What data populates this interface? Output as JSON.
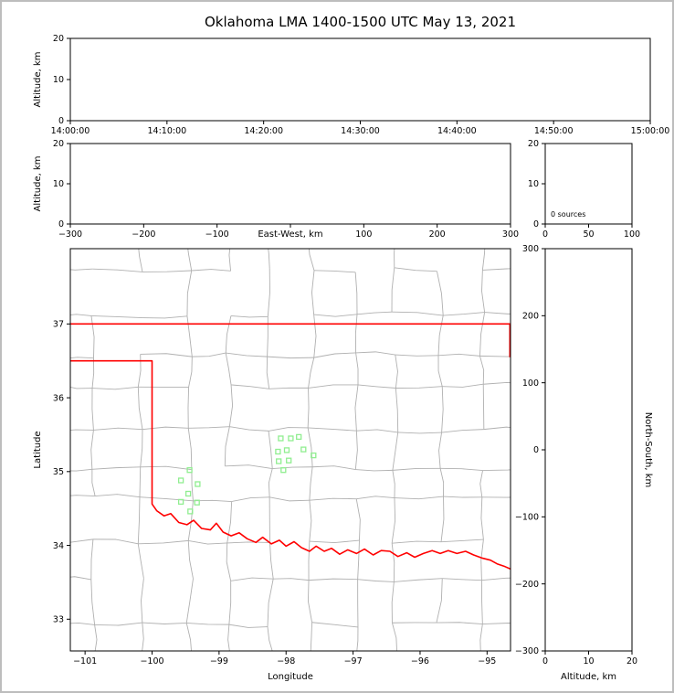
{
  "figure": {
    "title": "Oklahoma LMA 1400-1500 UTC May 13, 2021",
    "background": "#ffffff",
    "border_color": "#bdbdbd"
  },
  "colors": {
    "axis": "#000000",
    "county_lines": "#b0b0b0",
    "state_border": "#ff0000",
    "station_marker": "#90ee90"
  },
  "chart_data": [
    {
      "id": "time_height",
      "type": "scatter",
      "description": "VHF source altitude vs time, empty (no sources in period)",
      "xlabel": "",
      "ylabel": "Altitude, km",
      "xlim": [
        0,
        60
      ],
      "ylim": [
        0,
        20
      ],
      "x_ticks": [
        {
          "v": 0,
          "label": "14:00:00"
        },
        {
          "v": 10,
          "label": "14:10:00"
        },
        {
          "v": 20,
          "label": "14:20:00"
        },
        {
          "v": 30,
          "label": "14:30:00"
        },
        {
          "v": 40,
          "label": "14:40:00"
        },
        {
          "v": 50,
          "label": "14:50:00"
        },
        {
          "v": 60,
          "label": "15:00:00"
        }
      ],
      "y_ticks": [
        {
          "v": 0,
          "label": "0"
        },
        {
          "v": 10,
          "label": "10"
        },
        {
          "v": 20,
          "label": "20"
        }
      ],
      "points": []
    },
    {
      "id": "ew_height",
      "type": "scatter",
      "description": "VHF source altitude vs east-west distance, empty",
      "xlabel": "East-West, km",
      "ylabel": "Altitude, km",
      "xlim": [
        -300,
        300
      ],
      "ylim": [
        0,
        20
      ],
      "x_ticks": [
        {
          "v": -300,
          "label": "−300"
        },
        {
          "v": -200,
          "label": "−200"
        },
        {
          "v": -100,
          "label": "−100"
        },
        {
          "v": 0,
          "label": ""
        },
        {
          "v": 100,
          "label": "100"
        },
        {
          "v": 200,
          "label": "200"
        },
        {
          "v": 300,
          "label": "300"
        }
      ],
      "y_ticks": [
        {
          "v": 0,
          "label": "0"
        },
        {
          "v": 10,
          "label": "10"
        },
        {
          "v": 20,
          "label": "20"
        }
      ],
      "points": []
    },
    {
      "id": "src_hist",
      "type": "histogram",
      "description": "Source count per altitude histogram, empty",
      "xlabel": "",
      "ylabel": "",
      "xlim": [
        0,
        100
      ],
      "ylim": [
        0,
        20
      ],
      "x_ticks": [
        {
          "v": 0,
          "label": "0"
        },
        {
          "v": 50,
          "label": "50"
        },
        {
          "v": 100,
          "label": "100"
        }
      ],
      "y_ticks": [
        {
          "v": 0,
          "label": "0"
        },
        {
          "v": 10,
          "label": "10"
        },
        {
          "v": 20,
          "label": "20"
        }
      ],
      "annotation": "0 sources",
      "values": []
    },
    {
      "id": "map",
      "type": "map",
      "description": "Plan view of Oklahoma with county lines, red state/Red River border, and green LMA station squares",
      "xlabel": "Longitude",
      "ylabel": "Latitude",
      "xlim": [
        -101.22,
        -94.65
      ],
      "ylim": [
        32.57,
        38.02
      ],
      "x_ticks": [
        {
          "v": -101,
          "label": "−101"
        },
        {
          "v": -100,
          "label": "−100"
        },
        {
          "v": -99,
          "label": "−99"
        },
        {
          "v": -98,
          "label": "−98"
        },
        {
          "v": -97,
          "label": "−97"
        },
        {
          "v": -96,
          "label": "−96"
        },
        {
          "v": -95,
          "label": "−95"
        }
      ],
      "y_ticks": [
        {
          "v": 33,
          "label": "33"
        },
        {
          "v": 34,
          "label": "34"
        },
        {
          "v": 35,
          "label": "35"
        },
        {
          "v": 36,
          "label": "36"
        },
        {
          "v": 37,
          "label": "37"
        }
      ],
      "state_border": [
        [
          [
            -101.22,
            37.0
          ],
          [
            -94.66,
            37.0
          ],
          [
            -94.66,
            36.55
          ]
        ],
        [
          [
            -101.22,
            36.5
          ],
          [
            -100.0,
            36.5
          ],
          [
            -100.0,
            34.56
          ],
          [
            -99.93,
            34.47
          ],
          [
            -99.82,
            34.4
          ],
          [
            -99.72,
            34.43
          ],
          [
            -99.6,
            34.31
          ],
          [
            -99.48,
            34.28
          ],
          [
            -99.38,
            34.34
          ],
          [
            -99.26,
            34.23
          ],
          [
            -99.13,
            34.21
          ],
          [
            -99.04,
            34.3
          ],
          [
            -98.94,
            34.18
          ],
          [
            -98.82,
            34.13
          ],
          [
            -98.7,
            34.17
          ],
          [
            -98.58,
            34.09
          ],
          [
            -98.45,
            34.04
          ],
          [
            -98.35,
            34.11
          ],
          [
            -98.22,
            34.02
          ],
          [
            -98.1,
            34.07
          ],
          [
            -98.0,
            33.99
          ],
          [
            -97.88,
            34.05
          ],
          [
            -97.77,
            33.97
          ],
          [
            -97.65,
            33.92
          ],
          [
            -97.55,
            33.99
          ],
          [
            -97.43,
            33.92
          ],
          [
            -97.32,
            33.96
          ],
          [
            -97.2,
            33.88
          ],
          [
            -97.08,
            33.94
          ],
          [
            -96.95,
            33.89
          ],
          [
            -96.83,
            33.95
          ],
          [
            -96.7,
            33.87
          ],
          [
            -96.58,
            33.93
          ],
          [
            -96.45,
            33.92
          ],
          [
            -96.33,
            33.85
          ],
          [
            -96.2,
            33.9
          ],
          [
            -96.08,
            33.84
          ],
          [
            -95.95,
            33.89
          ],
          [
            -95.82,
            33.93
          ],
          [
            -95.7,
            33.89
          ],
          [
            -95.58,
            33.93
          ],
          [
            -95.45,
            33.89
          ],
          [
            -95.32,
            33.92
          ],
          [
            -95.2,
            33.87
          ],
          [
            -95.08,
            33.83
          ],
          [
            -94.95,
            33.8
          ],
          [
            -94.85,
            33.75
          ],
          [
            -94.75,
            33.72
          ],
          [
            -94.65,
            33.68
          ]
        ]
      ],
      "stations": [
        [
          -99.44,
          35.02
        ],
        [
          -99.57,
          34.88
        ],
        [
          -99.32,
          34.83
        ],
        [
          -99.46,
          34.7
        ],
        [
          -99.57,
          34.59
        ],
        [
          -99.33,
          34.58
        ],
        [
          -99.43,
          34.46
        ],
        [
          -98.08,
          35.45
        ],
        [
          -97.93,
          35.45
        ],
        [
          -97.81,
          35.47
        ],
        [
          -98.12,
          35.27
        ],
        [
          -97.99,
          35.29
        ],
        [
          -97.74,
          35.3
        ],
        [
          -97.59,
          35.22
        ],
        [
          -98.11,
          35.14
        ],
        [
          -97.96,
          35.15
        ],
        [
          -98.04,
          35.02
        ]
      ]
    },
    {
      "id": "ns_height",
      "type": "scatter",
      "description": "North-south distance vs altitude, empty",
      "xlabel": "Altitude, km",
      "ylabel_right": "North-South, km",
      "xlim": [
        0,
        20
      ],
      "ylim": [
        -300,
        300
      ],
      "x_ticks": [
        {
          "v": 0,
          "label": "0"
        },
        {
          "v": 10,
          "label": "10"
        },
        {
          "v": 20,
          "label": "20"
        }
      ],
      "y_ticks": [
        {
          "v": 300,
          "label": "300"
        },
        {
          "v": 200,
          "label": "200"
        },
        {
          "v": 100,
          "label": "100"
        },
        {
          "v": 0,
          "label": "0"
        },
        {
          "v": -100,
          "label": "−100"
        },
        {
          "v": -200,
          "label": "−200"
        },
        {
          "v": -300,
          "label": "−300"
        }
      ],
      "points": []
    }
  ]
}
